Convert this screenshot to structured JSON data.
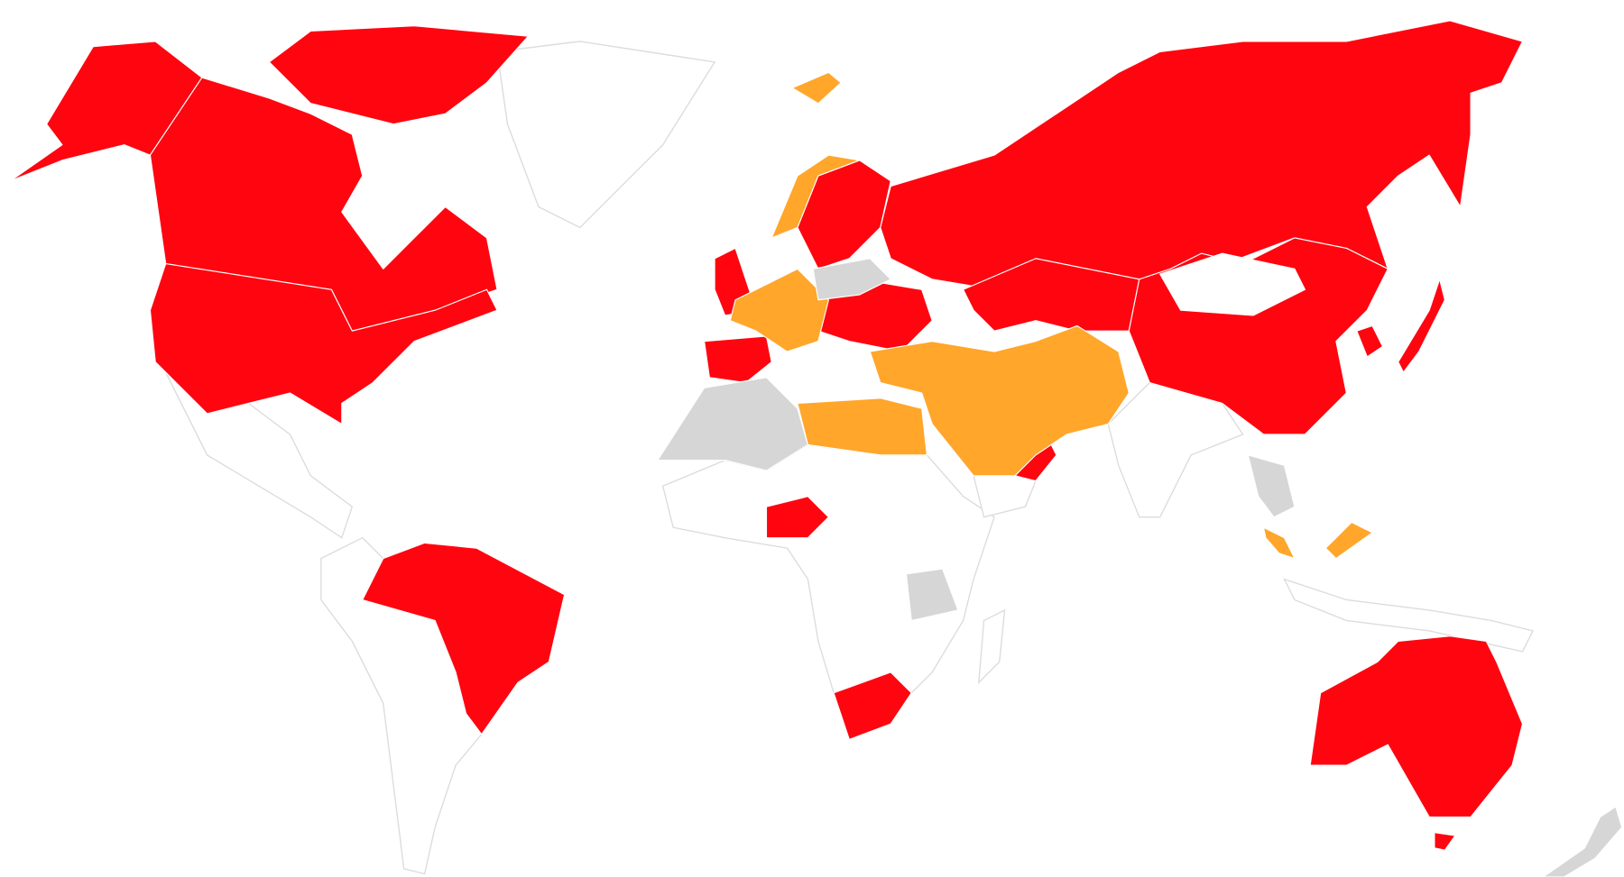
{
  "map": {
    "background": "#ffffff",
    "border_color": "#dcdcdc",
    "status_colors": {
      "red": "#ff0510",
      "orange": "#ffa62b",
      "grey": "#d6d6d6",
      "none": "#ffffff"
    },
    "regions": [
      {
        "id": "alaska",
        "status": "red"
      },
      {
        "id": "canada",
        "status": "red"
      },
      {
        "id": "canada-arctic-islands",
        "status": "red"
      },
      {
        "id": "united-states",
        "status": "red"
      },
      {
        "id": "brazil",
        "status": "red"
      },
      {
        "id": "nigeria",
        "status": "red"
      },
      {
        "id": "south-africa",
        "status": "red"
      },
      {
        "id": "australia",
        "status": "red"
      },
      {
        "id": "tasmania",
        "status": "red"
      },
      {
        "id": "russia",
        "status": "red"
      },
      {
        "id": "kazakhstan",
        "status": "red"
      },
      {
        "id": "china",
        "status": "red"
      },
      {
        "id": "sweden-finland",
        "status": "red"
      },
      {
        "id": "united-kingdom",
        "status": "red"
      },
      {
        "id": "spain-portugal",
        "status": "red"
      },
      {
        "id": "central-eastern-europe",
        "status": "red"
      },
      {
        "id": "oman",
        "status": "red"
      },
      {
        "id": "japan",
        "status": "red"
      },
      {
        "id": "south-korea",
        "status": "red"
      },
      {
        "id": "norway",
        "status": "orange"
      },
      {
        "id": "western-europe",
        "status": "orange"
      },
      {
        "id": "middle-east",
        "status": "orange"
      },
      {
        "id": "north-africa",
        "status": "orange"
      },
      {
        "id": "malaysia-peninsula",
        "status": "orange"
      },
      {
        "id": "malaysia-borneo",
        "status": "orange"
      },
      {
        "id": "svalbard",
        "status": "orange"
      },
      {
        "id": "poland-belarus",
        "status": "grey"
      },
      {
        "id": "west-africa",
        "status": "grey"
      },
      {
        "id": "tanzania",
        "status": "grey"
      },
      {
        "id": "southeast-asia",
        "status": "grey"
      },
      {
        "id": "new-zealand",
        "status": "grey"
      },
      {
        "id": "mongolia",
        "status": "none"
      }
    ]
  }
}
